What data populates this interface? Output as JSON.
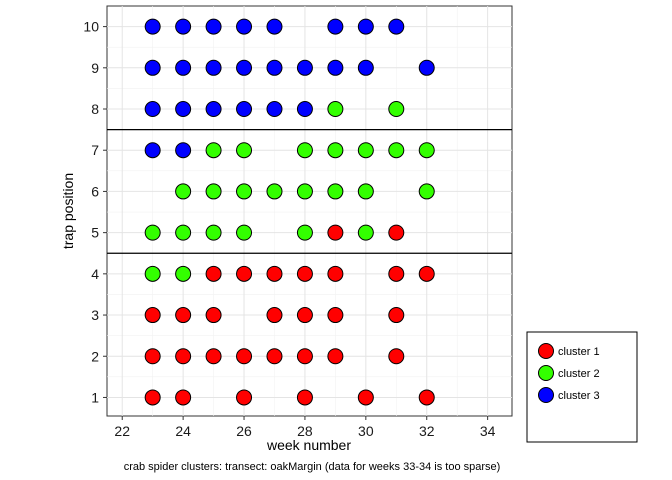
{
  "chart_data": {
    "type": "scatter",
    "xlabel": "week number",
    "ylabel": "trap position",
    "caption": "crab spider clusters: transect: oakMargin (data for weeks 33-34 is too sparse)",
    "xlim": [
      21.5,
      34.8
    ],
    "ylim": [
      0.55,
      10.5
    ],
    "x_ticks": [
      22,
      24,
      26,
      28,
      30,
      32,
      34
    ],
    "y_ticks": [
      1,
      2,
      3,
      4,
      5,
      6,
      7,
      8,
      9,
      10
    ],
    "x_tick_labels": [
      "22",
      "24",
      "26",
      "28",
      "30",
      "32",
      "34"
    ],
    "y_tick_labels": [
      "1",
      "2",
      "3",
      "4",
      "5",
      "6",
      "7",
      "8",
      "9",
      "10"
    ],
    "hlines": [
      4.5,
      7.5
    ],
    "grid": true,
    "legend_position": "bottom-right",
    "series": [
      {
        "name": "cluster 1",
        "color": "#ff0000",
        "points": [
          [
            23,
            1
          ],
          [
            24,
            1
          ],
          [
            26,
            1
          ],
          [
            28,
            1
          ],
          [
            30,
            1
          ],
          [
            32,
            1
          ],
          [
            23,
            2
          ],
          [
            24,
            2
          ],
          [
            25,
            2
          ],
          [
            26,
            2
          ],
          [
            27,
            2
          ],
          [
            28,
            2
          ],
          [
            29,
            2
          ],
          [
            31,
            2
          ],
          [
            23,
            3
          ],
          [
            24,
            3
          ],
          [
            25,
            3
          ],
          [
            27,
            3
          ],
          [
            28,
            3
          ],
          [
            29,
            3
          ],
          [
            31,
            3
          ],
          [
            25,
            4
          ],
          [
            26,
            4
          ],
          [
            27,
            4
          ],
          [
            28,
            4
          ],
          [
            29,
            4
          ],
          [
            31,
            4
          ],
          [
            32,
            4
          ],
          [
            29,
            5
          ],
          [
            31,
            5
          ]
        ]
      },
      {
        "name": "cluster 2",
        "color": "#33ff00",
        "points": [
          [
            23,
            4
          ],
          [
            24,
            4
          ],
          [
            23,
            5
          ],
          [
            24,
            5
          ],
          [
            25,
            5
          ],
          [
            26,
            5
          ],
          [
            28,
            5
          ],
          [
            30,
            5
          ],
          [
            24,
            6
          ],
          [
            25,
            6
          ],
          [
            26,
            6
          ],
          [
            27,
            6
          ],
          [
            28,
            6
          ],
          [
            29,
            6
          ],
          [
            30,
            6
          ],
          [
            32,
            6
          ],
          [
            25,
            7
          ],
          [
            26,
            7
          ],
          [
            28,
            7
          ],
          [
            29,
            7
          ],
          [
            30,
            7
          ],
          [
            31,
            7
          ],
          [
            32,
            7
          ],
          [
            29,
            8
          ],
          [
            31,
            8
          ]
        ]
      },
      {
        "name": "cluster 3",
        "color": "#0000ff",
        "points": [
          [
            23,
            7
          ],
          [
            24,
            7
          ],
          [
            23,
            8
          ],
          [
            24,
            8
          ],
          [
            25,
            8
          ],
          [
            26,
            8
          ],
          [
            27,
            8
          ],
          [
            28,
            8
          ],
          [
            23,
            9
          ],
          [
            24,
            9
          ],
          [
            25,
            9
          ],
          [
            26,
            9
          ],
          [
            27,
            9
          ],
          [
            28,
            9
          ],
          [
            29,
            9
          ],
          [
            30,
            9
          ],
          [
            32,
            9
          ],
          [
            23,
            10
          ],
          [
            24,
            10
          ],
          [
            25,
            10
          ],
          [
            26,
            10
          ],
          [
            27,
            10
          ],
          [
            29,
            10
          ],
          [
            30,
            10
          ],
          [
            31,
            10
          ]
        ]
      }
    ]
  }
}
